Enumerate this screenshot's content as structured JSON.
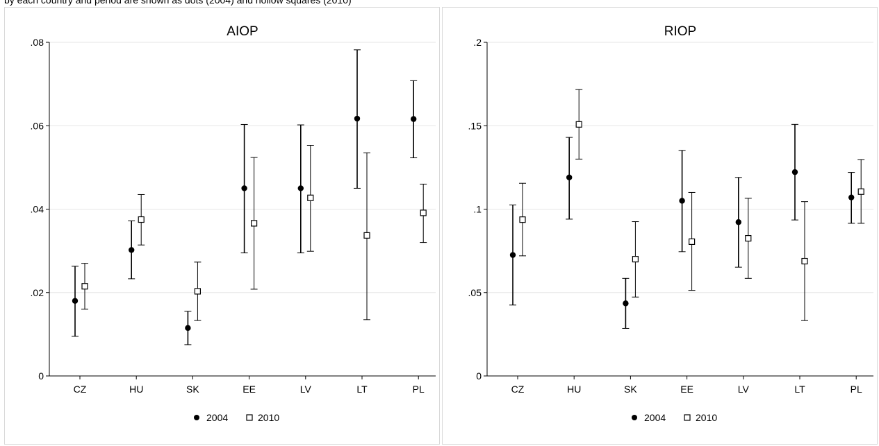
{
  "caption": "by each country and period are shown as dots (2004) and hollow squares (2010)",
  "colors": {
    "grid": "#e6e6e6",
    "axis": "#000000",
    "marker": "#000000",
    "frame": "#d9d9d9"
  },
  "chart_data": [
    {
      "type": "scatter",
      "title": "AIOP",
      "categories": [
        "CZ",
        "HU",
        "SK",
        "EE",
        "LV",
        "LT",
        "PL"
      ],
      "ylim": [
        0,
        0.08
      ],
      "yticks": [
        0,
        0.02,
        0.04,
        0.06,
        0.08
      ],
      "ytick_labels": [
        "0",
        ".02",
        ".04",
        ".06",
        ".08"
      ],
      "grid": true,
      "legend": "bottom",
      "series": [
        {
          "name": "2004",
          "marker": "filled-circle",
          "values": [
            0.018,
            0.0302,
            0.0115,
            0.045,
            0.045,
            0.0617,
            0.0616
          ],
          "lower": [
            0.0095,
            0.0233,
            0.0075,
            0.0295,
            0.0295,
            0.045,
            0.0523
          ],
          "upper": [
            0.0263,
            0.0372,
            0.0155,
            0.0603,
            0.0602,
            0.0782,
            0.0708
          ]
        },
        {
          "name": "2010",
          "marker": "hollow-square",
          "values": [
            0.0215,
            0.0375,
            0.0203,
            0.0366,
            0.0427,
            0.0337,
            0.0391
          ],
          "lower": [
            0.016,
            0.0314,
            0.0133,
            0.0208,
            0.0299,
            0.0135,
            0.032
          ],
          "upper": [
            0.027,
            0.0435,
            0.0273,
            0.0524,
            0.0553,
            0.0535,
            0.046
          ]
        }
      ]
    },
    {
      "type": "scatter",
      "title": "RIOP",
      "categories": [
        "CZ",
        "HU",
        "SK",
        "EE",
        "LV",
        "LT",
        "PL"
      ],
      "ylim": [
        0,
        0.2
      ],
      "yticks": [
        0,
        0.05,
        0.1,
        0.15,
        0.2
      ],
      "ytick_labels": [
        "0",
        ".05",
        ".1",
        ".15",
        ".2"
      ],
      "grid": true,
      "legend": "bottom",
      "series": [
        {
          "name": "2004",
          "marker": "filled-circle",
          "values": [
            0.0725,
            0.119,
            0.0435,
            0.105,
            0.0922,
            0.1222,
            0.107
          ],
          "lower": [
            0.0425,
            0.094,
            0.0285,
            0.0745,
            0.0652,
            0.0935,
            0.0915
          ],
          "upper": [
            0.1025,
            0.143,
            0.0585,
            0.1352,
            0.119,
            0.1508,
            0.122
          ]
        },
        {
          "name": "2010",
          "marker": "hollow-square",
          "values": [
            0.0937,
            0.1508,
            0.07,
            0.0805,
            0.0825,
            0.0688,
            0.1105
          ],
          "lower": [
            0.072,
            0.13,
            0.0473,
            0.0513,
            0.0585,
            0.0332,
            0.0915
          ],
          "upper": [
            0.1155,
            0.1717,
            0.0925,
            0.11,
            0.1065,
            0.1045,
            0.1297
          ]
        }
      ]
    }
  ]
}
